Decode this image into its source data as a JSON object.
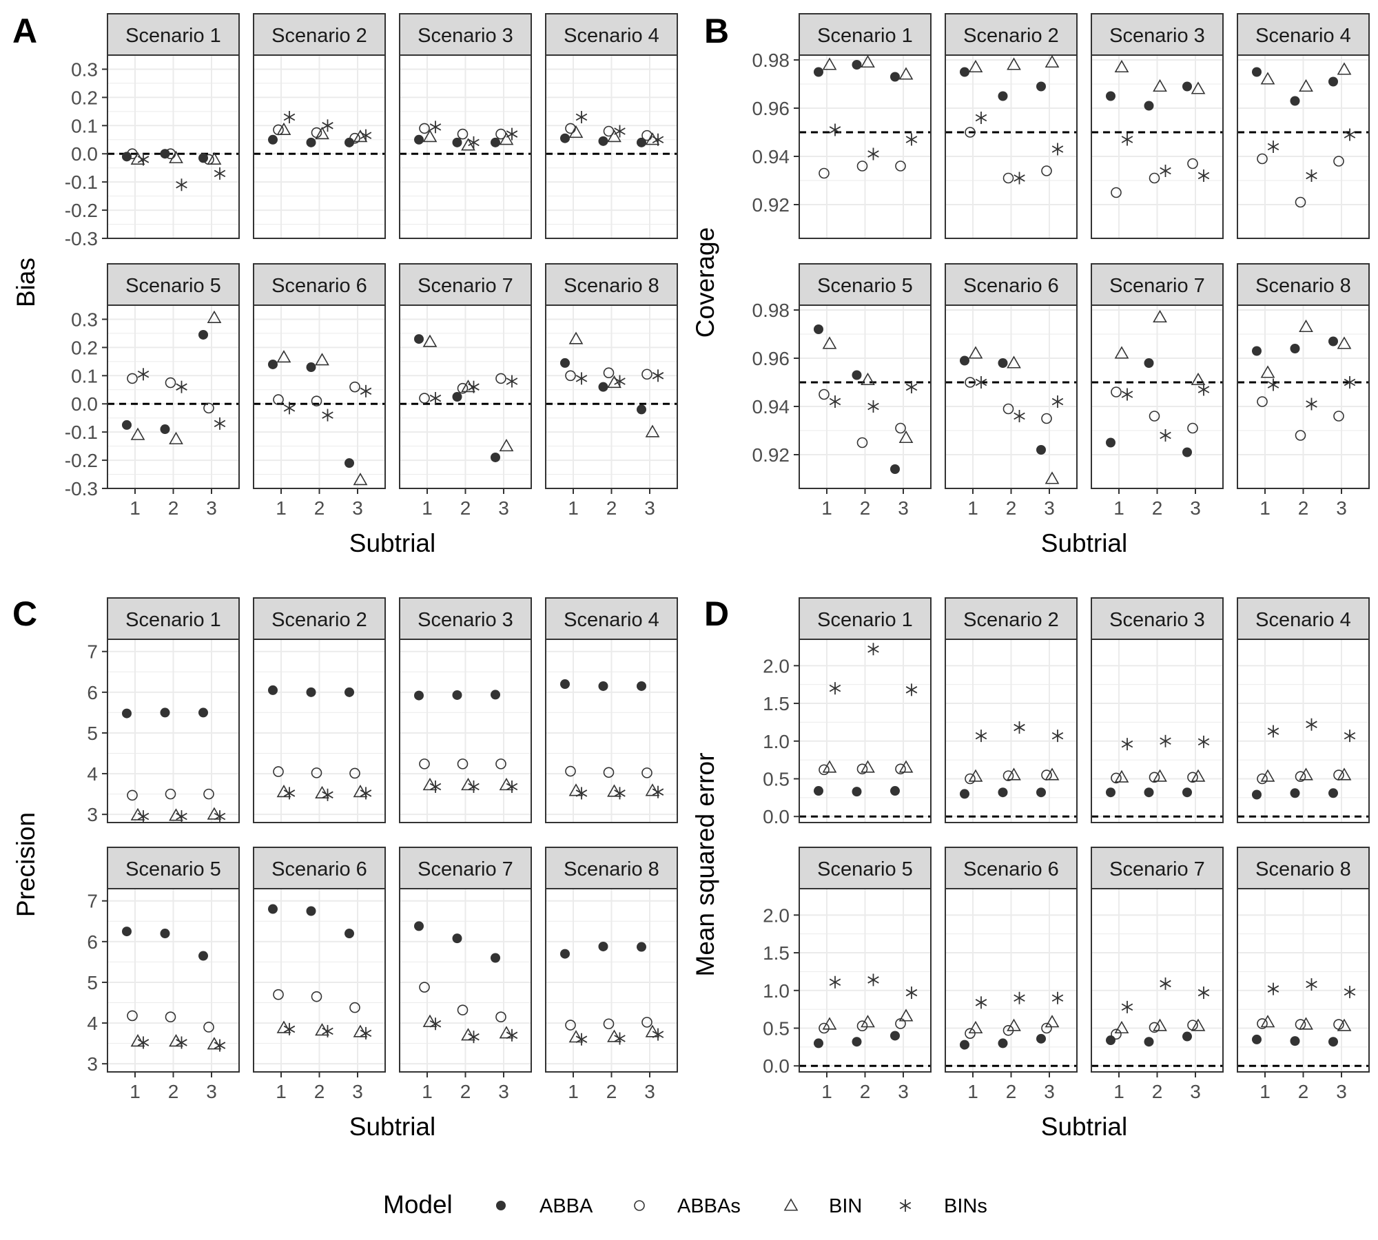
{
  "figure": {
    "models": [
      "ABBA",
      "ABBAs",
      "BIN",
      "BINs"
    ],
    "legend": {
      "title": "Model",
      "labels": [
        "ABBA",
        "ABBAs",
        "BIN",
        "BINs"
      ],
      "placement": "bottom"
    },
    "strip_fill": "#d9d9d9",
    "point_fill": "#333333",
    "reference_line": "dashed"
  },
  "chart_data": [
    {
      "type": "scatter",
      "panel": "A",
      "ylabel": "Bias",
      "xlabel": "Subtrial",
      "ylim": [
        -0.3,
        0.35
      ],
      "yticks": [
        -0.3,
        -0.2,
        -0.1,
        0,
        0.1,
        0.2,
        0.3
      ],
      "ytick_labels": [
        "-0.3",
        "-0.2",
        "-0.1",
        "0.0",
        "0.1",
        "0.2",
        "0.3"
      ],
      "reference_value": 0,
      "x": [
        1,
        2,
        3
      ],
      "xtick_labels": [
        "1",
        "2",
        "3"
      ],
      "facets": [
        {
          "title": "Scenario 1",
          "series": {
            "ABBA": [
              -0.01,
              0.0,
              -0.015
            ],
            "ABBAs": [
              0.0,
              0.0,
              -0.02
            ],
            "BIN": [
              -0.02,
              -0.015,
              -0.02
            ],
            "BINs": [
              -0.02,
              -0.11,
              -0.07
            ]
          }
        },
        {
          "title": "Scenario 2",
          "series": {
            "ABBA": [
              0.05,
              0.04,
              0.04
            ],
            "ABBAs": [
              0.085,
              0.075,
              0.055
            ],
            "BIN": [
              0.085,
              0.07,
              0.06
            ],
            "BINs": [
              0.13,
              0.1,
              0.065
            ]
          }
        },
        {
          "title": "Scenario 3",
          "series": {
            "ABBA": [
              0.05,
              0.04,
              0.04
            ],
            "ABBAs": [
              0.09,
              0.07,
              0.07
            ],
            "BIN": [
              0.06,
              0.03,
              0.05
            ],
            "BINs": [
              0.095,
              0.04,
              0.07
            ]
          }
        },
        {
          "title": "Scenario 4",
          "series": {
            "ABBA": [
              0.055,
              0.045,
              0.04
            ],
            "ABBAs": [
              0.09,
              0.08,
              0.065
            ],
            "BIN": [
              0.075,
              0.06,
              0.05
            ],
            "BINs": [
              0.13,
              0.08,
              0.05
            ]
          }
        },
        {
          "title": "Scenario 5",
          "series": {
            "ABBA": [
              -0.075,
              -0.09,
              0.245
            ],
            "ABBAs": [
              0.09,
              0.075,
              -0.015
            ],
            "BIN": [
              -0.11,
              -0.125,
              0.305
            ],
            "BINs": [
              0.105,
              0.06,
              -0.07
            ]
          }
        },
        {
          "title": "Scenario 6",
          "series": {
            "ABBA": [
              0.14,
              0.13,
              -0.21
            ],
            "ABBAs": [
              0.015,
              0.01,
              0.06
            ],
            "BIN": [
              0.165,
              0.155,
              -0.27
            ],
            "BINs": [
              -0.015,
              -0.04,
              0.045
            ]
          }
        },
        {
          "title": "Scenario 7",
          "series": {
            "ABBA": [
              0.23,
              0.025,
              -0.19
            ],
            "ABBAs": [
              0.02,
              0.055,
              0.09
            ],
            "BIN": [
              0.22,
              0.06,
              -0.15
            ],
            "BINs": [
              0.02,
              0.06,
              0.08
            ]
          }
        },
        {
          "title": "Scenario 8",
          "series": {
            "ABBA": [
              0.145,
              0.06,
              -0.02
            ],
            "ABBAs": [
              0.1,
              0.11,
              0.105
            ],
            "BIN": [
              0.23,
              0.075,
              -0.1
            ],
            "BINs": [
              0.09,
              0.08,
              0.1
            ]
          }
        }
      ]
    },
    {
      "type": "scatter",
      "panel": "B",
      "ylabel": "Coverage",
      "xlabel": "Subtrial",
      "ylim": [
        0.906,
        0.982
      ],
      "yticks": [
        0.92,
        0.94,
        0.96,
        0.98
      ],
      "ytick_labels": [
        "0.92",
        "0.94",
        "0.96",
        "0.98"
      ],
      "reference_value": 0.95,
      "x": [
        1,
        2,
        3
      ],
      "xtick_labels": [
        "1",
        "2",
        "3"
      ],
      "facets": [
        {
          "title": "Scenario 1",
          "series": {
            "ABBA": [
              0.975,
              0.978,
              0.973
            ],
            "ABBAs": [
              0.933,
              0.936,
              0.936
            ],
            "BIN": [
              0.978,
              0.979,
              0.974
            ],
            "BINs": [
              0.951,
              0.941,
              0.947
            ]
          }
        },
        {
          "title": "Scenario 2",
          "series": {
            "ABBA": [
              0.975,
              0.965,
              0.969
            ],
            "ABBAs": [
              0.95,
              0.931,
              0.934
            ],
            "BIN": [
              0.977,
              0.978,
              0.979
            ],
            "BINs": [
              0.956,
              0.931,
              0.943
            ]
          }
        },
        {
          "title": "Scenario 3",
          "series": {
            "ABBA": [
              0.965,
              0.961,
              0.969
            ],
            "ABBAs": [
              0.925,
              0.931,
              0.937
            ],
            "BIN": [
              0.977,
              0.969,
              0.968
            ],
            "BINs": [
              0.947,
              0.934,
              0.932
            ]
          }
        },
        {
          "title": "Scenario 4",
          "series": {
            "ABBA": [
              0.975,
              0.963,
              0.971
            ],
            "ABBAs": [
              0.939,
              0.921,
              0.938
            ],
            "BIN": [
              0.972,
              0.969,
              0.976
            ],
            "BINs": [
              0.944,
              0.932,
              0.949
            ]
          }
        },
        {
          "title": "Scenario 5",
          "series": {
            "ABBA": [
              0.972,
              0.953,
              0.914
            ],
            "ABBAs": [
              0.945,
              0.925,
              0.931
            ],
            "BIN": [
              0.966,
              0.951,
              0.927
            ],
            "BINs": [
              0.942,
              0.94,
              0.948
            ]
          }
        },
        {
          "title": "Scenario 6",
          "series": {
            "ABBA": [
              0.959,
              0.958,
              0.922
            ],
            "ABBAs": [
              0.95,
              0.939,
              0.935
            ],
            "BIN": [
              0.962,
              0.958,
              0.91
            ],
            "BINs": [
              0.95,
              0.936,
              0.942
            ]
          }
        },
        {
          "title": "Scenario 7",
          "series": {
            "ABBA": [
              0.925,
              0.958,
              0.921
            ],
            "ABBAs": [
              0.946,
              0.936,
              0.931
            ],
            "BIN": [
              0.962,
              0.977,
              0.951
            ],
            "BINs": [
              0.945,
              0.928,
              0.947
            ]
          }
        },
        {
          "title": "Scenario 8",
          "series": {
            "ABBA": [
              0.963,
              0.964,
              0.967
            ],
            "ABBAs": [
              0.942,
              0.928,
              0.936
            ],
            "BIN": [
              0.954,
              0.973,
              0.966
            ],
            "BINs": [
              0.949,
              0.941,
              0.95
            ]
          }
        }
      ]
    },
    {
      "type": "scatter",
      "panel": "C",
      "ylabel": "Precision",
      "xlabel": "Subtrial",
      "ylim": [
        2.8,
        7.3
      ],
      "yticks": [
        3,
        4,
        5,
        6,
        7
      ],
      "ytick_labels": [
        "3",
        "4",
        "5",
        "6",
        "7"
      ],
      "reference_value": null,
      "x": [
        1,
        2,
        3
      ],
      "xtick_labels": [
        "1",
        "2",
        "3"
      ],
      "facets": [
        {
          "title": "Scenario 1",
          "series": {
            "ABBA": [
              5.48,
              5.5,
              5.5
            ],
            "ABBAs": [
              3.47,
              3.5,
              3.5
            ],
            "BIN": [
              2.98,
              2.97,
              3.0
            ],
            "BINs": [
              2.95,
              2.95,
              2.95
            ]
          }
        },
        {
          "title": "Scenario 2",
          "series": {
            "ABBA": [
              6.05,
              6.0,
              6.0
            ],
            "ABBAs": [
              4.05,
              4.02,
              4.01
            ],
            "BIN": [
              3.55,
              3.52,
              3.55
            ],
            "BINs": [
              3.52,
              3.48,
              3.52
            ]
          }
        },
        {
          "title": "Scenario 3",
          "series": {
            "ABBA": [
              5.92,
              5.93,
              5.94
            ],
            "ABBAs": [
              4.24,
              4.24,
              4.24
            ],
            "BIN": [
              3.72,
              3.72,
              3.72
            ],
            "BINs": [
              3.68,
              3.68,
              3.68
            ]
          }
        },
        {
          "title": "Scenario 4",
          "series": {
            "ABBA": [
              6.2,
              6.15,
              6.15
            ],
            "ABBAs": [
              4.06,
              4.03,
              4.02
            ],
            "BIN": [
              3.58,
              3.56,
              3.58
            ],
            "BINs": [
              3.52,
              3.52,
              3.55
            ]
          }
        },
        {
          "title": "Scenario 5",
          "series": {
            "ABBA": [
              6.25,
              6.2,
              5.65
            ],
            "ABBAs": [
              4.18,
              4.15,
              3.9
            ],
            "BIN": [
              3.55,
              3.55,
              3.48
            ],
            "BINs": [
              3.52,
              3.52,
              3.45
            ]
          }
        },
        {
          "title": "Scenario 6",
          "series": {
            "ABBA": [
              6.8,
              6.75,
              6.2
            ],
            "ABBAs": [
              4.7,
              4.65,
              4.38
            ],
            "BIN": [
              3.88,
              3.82,
              3.78
            ],
            "BINs": [
              3.85,
              3.8,
              3.75
            ]
          }
        },
        {
          "title": "Scenario 7",
          "series": {
            "ABBA": [
              6.38,
              6.08,
              5.6
            ],
            "ABBAs": [
              4.88,
              4.32,
              4.15
            ],
            "BIN": [
              4.03,
              3.7,
              3.75
            ],
            "BINs": [
              3.98,
              3.66,
              3.7
            ]
          }
        },
        {
          "title": "Scenario 8",
          "series": {
            "ABBA": [
              5.7,
              5.88,
              5.87
            ],
            "ABBAs": [
              3.95,
              3.98,
              4.02
            ],
            "BIN": [
              3.65,
              3.66,
              3.78
            ],
            "BINs": [
              3.6,
              3.62,
              3.72
            ]
          }
        }
      ]
    },
    {
      "type": "scatter",
      "panel": "D",
      "ylabel": "Mean squared error",
      "xlabel": "Subtrial",
      "ylim": [
        -0.08,
        2.35
      ],
      "yticks": [
        0,
        0.5,
        1,
        1.5,
        2
      ],
      "ytick_labels": [
        "0.0",
        "0.5",
        "1.0",
        "1.5",
        "2.0"
      ],
      "reference_value": 0,
      "x": [
        1,
        2,
        3
      ],
      "xtick_labels": [
        "1",
        "2",
        "3"
      ],
      "facets": [
        {
          "title": "Scenario 1",
          "series": {
            "ABBA": [
              0.34,
              0.33,
              0.34
            ],
            "ABBAs": [
              0.62,
              0.63,
              0.63
            ],
            "BIN": [
              0.65,
              0.65,
              0.65
            ],
            "BINs": [
              1.7,
              2.22,
              1.68
            ]
          }
        },
        {
          "title": "Scenario 2",
          "series": {
            "ABBA": [
              0.3,
              0.32,
              0.32
            ],
            "ABBAs": [
              0.5,
              0.54,
              0.55
            ],
            "BIN": [
              0.53,
              0.55,
              0.55
            ],
            "BINs": [
              1.07,
              1.18,
              1.07
            ]
          }
        },
        {
          "title": "Scenario 3",
          "series": {
            "ABBA": [
              0.32,
              0.32,
              0.32
            ],
            "ABBAs": [
              0.51,
              0.52,
              0.52
            ],
            "BIN": [
              0.52,
              0.53,
              0.53
            ],
            "BINs": [
              0.96,
              1.0,
              0.99
            ]
          }
        },
        {
          "title": "Scenario 4",
          "series": {
            "ABBA": [
              0.29,
              0.31,
              0.31
            ],
            "ABBAs": [
              0.5,
              0.53,
              0.55
            ],
            "BIN": [
              0.53,
              0.55,
              0.55
            ],
            "BINs": [
              1.13,
              1.22,
              1.07
            ]
          }
        },
        {
          "title": "Scenario 5",
          "series": {
            "ABBA": [
              0.3,
              0.32,
              0.4
            ],
            "ABBAs": [
              0.5,
              0.53,
              0.56
            ],
            "BIN": [
              0.55,
              0.58,
              0.66
            ],
            "BINs": [
              1.11,
              1.14,
              0.97
            ]
          }
        },
        {
          "title": "Scenario 6",
          "series": {
            "ABBA": [
              0.28,
              0.3,
              0.36
            ],
            "ABBAs": [
              0.43,
              0.47,
              0.5
            ],
            "BIN": [
              0.5,
              0.53,
              0.58
            ],
            "BINs": [
              0.84,
              0.9,
              0.9
            ]
          }
        },
        {
          "title": "Scenario 7",
          "series": {
            "ABBA": [
              0.34,
              0.32,
              0.39
            ],
            "ABBAs": [
              0.42,
              0.51,
              0.54
            ],
            "BIN": [
              0.5,
              0.53,
              0.53
            ],
            "BINs": [
              0.78,
              1.09,
              0.97
            ]
          }
        },
        {
          "title": "Scenario 8",
          "series": {
            "ABBA": [
              0.35,
              0.33,
              0.32
            ],
            "ABBAs": [
              0.56,
              0.55,
              0.55
            ],
            "BIN": [
              0.58,
              0.55,
              0.53
            ],
            "BINs": [
              1.02,
              1.08,
              0.98
            ]
          }
        }
      ]
    }
  ]
}
